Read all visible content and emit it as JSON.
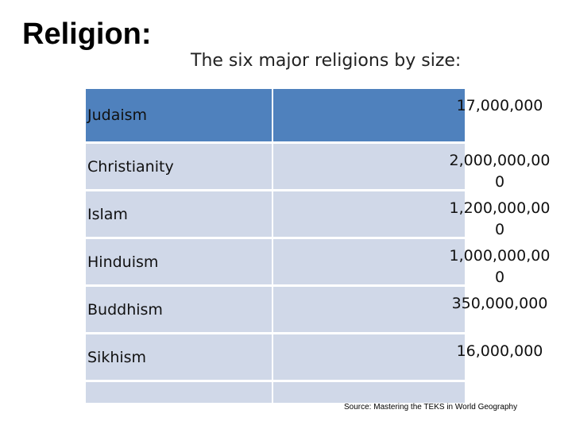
{
  "header": {
    "title": "Religion:",
    "subtitle": "The six major religions by size:"
  },
  "table": {
    "rows": [
      [
        "Judaism",
        "17,000,000"
      ],
      [
        "Christianity",
        "2,000,000,000"
      ],
      [
        "Islam",
        "1,200,000,000"
      ],
      [
        "Hinduism",
        "1,000,000,000"
      ],
      [
        "Buddhism",
        "350,000,000"
      ],
      [
        "Sikhism",
        "16,000,000"
      ]
    ]
  },
  "source": "Source: Mastering the TEKS in World Geography"
}
